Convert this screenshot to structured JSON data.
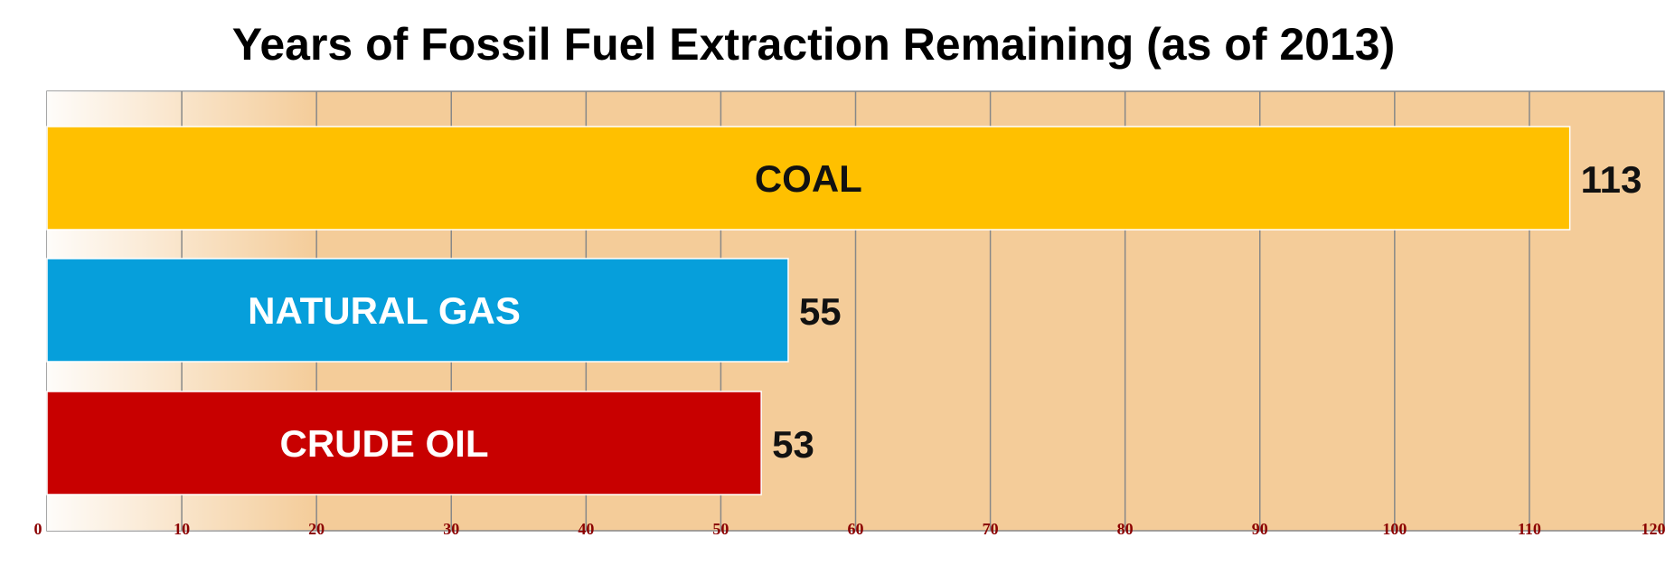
{
  "chart_data": {
    "type": "bar",
    "orientation": "horizontal",
    "title": "Years of Fossil Fuel Extraction Remaining (as of 2013)",
    "xlabel": "",
    "ylabel": "",
    "xlim": [
      0,
      120
    ],
    "x_ticks": [
      0,
      10,
      20,
      30,
      40,
      50,
      60,
      70,
      80,
      90,
      100,
      110,
      120
    ],
    "grid": true,
    "legend": "none",
    "categories": [
      "COAL",
      "NATURAL GAS",
      "CRUDE OIL"
    ],
    "values": [
      113,
      55,
      53
    ],
    "value_labels": [
      "113",
      "55",
      "53"
    ],
    "bar_colors": [
      "#FFC000",
      "#069FDB",
      "#C80000"
    ],
    "label_colors": [
      "#111111",
      "#FFFFFF",
      "#FFFFFF"
    ],
    "plot_background": "#F4CC99",
    "gridline_color": "#888888",
    "tick_label_color": "#8B0000"
  }
}
